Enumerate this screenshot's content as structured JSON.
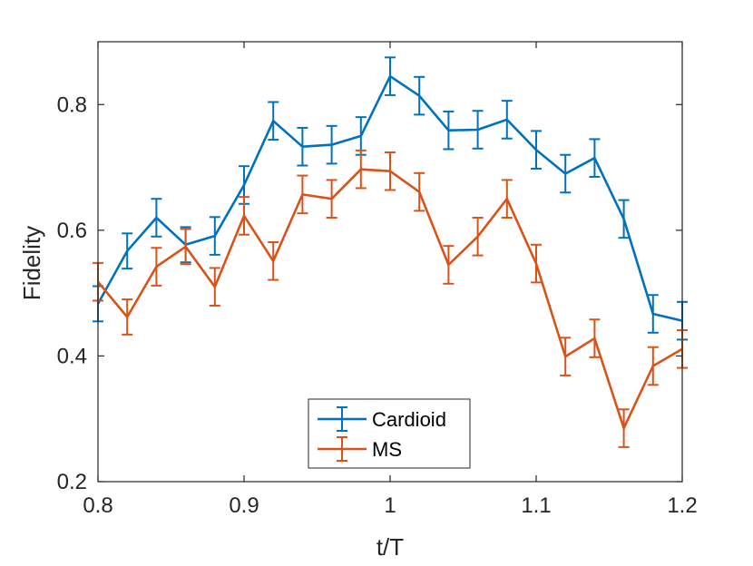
{
  "chart_data": {
    "type": "line",
    "title": "",
    "xlabel": "t/T",
    "ylabel": "Fidelity",
    "xlim": [
      0.8,
      1.2
    ],
    "ylim": [
      0.2,
      0.9
    ],
    "xticks": [
      0.8,
      0.9,
      1.0,
      1.1,
      1.2
    ],
    "xtick_labels": [
      "0.8",
      "0.9",
      "1",
      "1.1",
      "1.2"
    ],
    "yticks": [
      0.2,
      0.4,
      0.6,
      0.8
    ],
    "ytick_labels": [
      "0.2",
      "0.4",
      "0.6",
      "0.8"
    ],
    "grid": false,
    "legend_position": "bottom-center",
    "x": [
      0.8,
      0.82,
      0.84,
      0.86,
      0.88,
      0.9,
      0.92,
      0.94,
      0.96,
      0.98,
      1.0,
      1.02,
      1.04,
      1.06,
      1.08,
      1.1,
      1.12,
      1.14,
      1.16,
      1.18,
      1.2
    ],
    "series": [
      {
        "name": "Cardioid",
        "color": "#0072BD",
        "values": [
          0.483,
          0.567,
          0.62,
          0.577,
          0.591,
          0.672,
          0.774,
          0.733,
          0.736,
          0.75,
          0.845,
          0.814,
          0.759,
          0.76,
          0.776,
          0.728,
          0.69,
          0.715,
          0.618,
          0.467,
          0.456
        ],
        "errors": [
          0.028,
          0.028,
          0.03,
          0.028,
          0.03,
          0.03,
          0.03,
          0.03,
          0.03,
          0.03,
          0.03,
          0.03,
          0.03,
          0.03,
          0.03,
          0.03,
          0.03,
          0.03,
          0.03,
          0.03,
          0.03
        ]
      },
      {
        "name": "MS",
        "color": "#D95319",
        "values": [
          0.518,
          0.462,
          0.542,
          0.574,
          0.51,
          0.623,
          0.551,
          0.657,
          0.65,
          0.697,
          0.694,
          0.661,
          0.545,
          0.59,
          0.65,
          0.547,
          0.399,
          0.428,
          0.285,
          0.384,
          0.411
        ],
        "errors": [
          0.03,
          0.028,
          0.03,
          0.028,
          0.03,
          0.03,
          0.03,
          0.03,
          0.03,
          0.03,
          0.03,
          0.03,
          0.03,
          0.03,
          0.03,
          0.03,
          0.03,
          0.03,
          0.03,
          0.03,
          0.03
        ]
      }
    ]
  }
}
